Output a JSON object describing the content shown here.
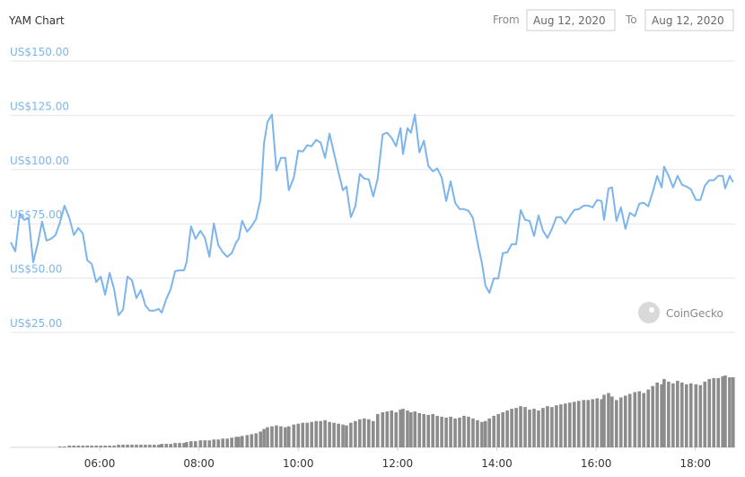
{
  "header": {
    "title": "YAM Chart",
    "from_label": "From",
    "from_date": "Aug 12, 2020",
    "to_label": "To",
    "to_date": "Aug 12, 2020"
  },
  "watermark": "CoinGecko",
  "chart_data": {
    "type": "line",
    "x": [
      4.21,
      4.3,
      4.39,
      4.48,
      4.57,
      4.66,
      4.75,
      4.84,
      4.93,
      5.02,
      5.11,
      5.2,
      5.29,
      5.39,
      5.48,
      5.57,
      5.66,
      5.75,
      5.84,
      5.93,
      6.02,
      6.11,
      6.2,
      6.29,
      6.38,
      6.47,
      6.56,
      6.65,
      6.74,
      6.83,
      6.92,
      7.01,
      7.1,
      7.19,
      7.25,
      7.34,
      7.43,
      7.52,
      7.61,
      7.7,
      7.75,
      7.84,
      7.93,
      8.03,
      8.12,
      8.21,
      8.3,
      8.39,
      8.48,
      8.57,
      8.66,
      8.75,
      8.8,
      8.87,
      8.97,
      9.06,
      9.15,
      9.24,
      9.31,
      9.38,
      9.47,
      9.56,
      9.65,
      9.74,
      9.81,
      9.91,
      10.0,
      10.09,
      10.18,
      10.27,
      10.36,
      10.45,
      10.54,
      10.63,
      10.72,
      10.81,
      10.9,
      10.97,
      11.06,
      11.15,
      11.24,
      11.33,
      11.42,
      11.51,
      11.6,
      11.7,
      11.79,
      11.88,
      11.97,
      12.06,
      12.11,
      12.2,
      12.27,
      12.35,
      12.44,
      12.53,
      12.62,
      12.71,
      12.8,
      12.89,
      12.98,
      13.07,
      13.16,
      13.25,
      13.34,
      13.43,
      13.52,
      13.61,
      13.7,
      13.77,
      13.85,
      13.94,
      14.03,
      14.12,
      14.21,
      14.3,
      14.39,
      14.48,
      14.57,
      14.66,
      14.75,
      14.84,
      14.93,
      15.02,
      15.11,
      15.2,
      15.29,
      15.38,
      15.47,
      15.56,
      15.65,
      15.75,
      15.84,
      15.93,
      16.02,
      16.11,
      16.16,
      16.25,
      16.32,
      16.41,
      16.5,
      16.59,
      16.68,
      16.78,
      16.87,
      16.96,
      17.05,
      17.14,
      17.23,
      17.32,
      17.37,
      17.46,
      17.55,
      17.64,
      17.73,
      17.82,
      17.91,
      18.01,
      18.1,
      18.19,
      18.28,
      18.37,
      18.46,
      18.55,
      18.6,
      18.69,
      18.76
    ],
    "series": [
      {
        "color": "#7cb5ec",
        "values": [
          66.5,
          62.3,
          79.7,
          76.8,
          77.6,
          57.3,
          65.6,
          76,
          67.3,
          68.1,
          69.8,
          75.6,
          83.4,
          77.6,
          69.8,
          73.1,
          70.6,
          58.2,
          56.5,
          48.2,
          50.7,
          42.4,
          52.4,
          44.9,
          32.9,
          35.4,
          50.7,
          49,
          40.8,
          44.5,
          37.4,
          35,
          35,
          35.8,
          34.1,
          40.3,
          44.9,
          53.2,
          53.6,
          53.6,
          57.3,
          73.9,
          68.1,
          71.8,
          68.5,
          59.8,
          75.2,
          65.2,
          61.9,
          59.8,
          61.5,
          66.5,
          68.1,
          76.4,
          71.4,
          73.9,
          77.2,
          86.4,
          112.1,
          122,
          125.3,
          99.6,
          105.4,
          105.4,
          90.5,
          96.3,
          108.7,
          108.3,
          111.2,
          110.8,
          113.7,
          112.5,
          105.4,
          116.6,
          107.5,
          98.8,
          90.5,
          92.2,
          78.1,
          83.1,
          98,
          95.9,
          95.5,
          87.6,
          95.9,
          116.2,
          117,
          114.6,
          110.8,
          119.1,
          107.1,
          119.1,
          117,
          125.3,
          107.9,
          113.3,
          101.7,
          99.2,
          100.5,
          96.3,
          85.5,
          94.6,
          84.7,
          81.8,
          81.8,
          81,
          77.6,
          66.5,
          56.9,
          46.6,
          43.2,
          49.9,
          49.9,
          61.5,
          61.9,
          65.6,
          65.6,
          81.4,
          76.8,
          76.4,
          69.4,
          78.9,
          71.8,
          68.5,
          72.7,
          78.1,
          78.1,
          75.2,
          78.5,
          81.4,
          81.8,
          83.4,
          83.4,
          82.6,
          86,
          85.5,
          76.8,
          91.3,
          91.8,
          76.4,
          82.6,
          72.7,
          80.1,
          78.5,
          84.3,
          84.7,
          83.1,
          89.7,
          97.1,
          91.8,
          101.3,
          97.1,
          91.8,
          97.1,
          93,
          92.2,
          90.9,
          86,
          86,
          92.6,
          95.1,
          95.1,
          97.1,
          97.1,
          91.3,
          97.1,
          94.2
        ]
      }
    ],
    "volume": {
      "color": "#8c8c8c",
      "values": [
        null,
        null,
        null,
        null,
        null,
        null,
        null,
        null,
        null,
        null,
        null,
        1,
        1,
        2,
        2,
        2,
        2,
        2,
        2,
        2,
        2,
        2,
        2,
        2,
        3,
        3,
        3,
        3,
        3,
        3,
        3,
        3,
        3,
        3,
        4,
        4,
        4,
        5,
        5,
        5,
        6,
        7,
        7,
        8,
        8,
        8,
        9,
        9,
        10,
        10,
        11,
        12,
        12,
        13,
        14,
        15,
        16,
        18,
        21,
        23,
        24,
        25,
        24,
        23,
        24,
        26,
        27,
        28,
        28,
        29,
        30,
        30,
        31,
        29,
        28,
        27,
        26,
        25,
        28,
        30,
        32,
        33,
        32,
        30,
        38,
        40,
        41,
        42,
        40,
        43,
        44,
        42,
        40,
        41,
        39,
        38,
        37,
        38,
        36,
        35,
        34,
        35,
        33,
        34,
        36,
        35,
        33,
        31,
        29,
        30,
        33,
        36,
        38,
        40,
        42,
        44,
        45,
        47,
        46,
        43,
        44,
        42,
        45,
        47,
        46,
        48,
        49,
        50,
        51,
        52,
        53,
        54,
        54,
        55,
        56,
        55,
        60,
        62,
        58,
        54,
        57,
        59,
        61,
        63,
        64,
        62,
        66,
        70,
        74,
        72,
        78,
        75,
        73,
        76,
        74,
        72,
        73,
        72,
        71,
        75,
        78,
        79,
        79,
        81,
        82,
        80,
        80
      ]
    },
    "xlim": [
      4.2,
      18.8
    ],
    "xticks": [
      {
        "value": 6,
        "label": "06:00"
      },
      {
        "value": 8,
        "label": "08:00"
      },
      {
        "value": 10,
        "label": "10:00"
      },
      {
        "value": 12,
        "label": "12:00"
      },
      {
        "value": 14,
        "label": "14:00"
      },
      {
        "value": 16,
        "label": "16:00"
      },
      {
        "value": 18,
        "label": "18:00"
      }
    ],
    "ylim": [
      25,
      150
    ],
    "yticks": [
      {
        "value": 25,
        "label": "US$25.00"
      },
      {
        "value": 50,
        "label": "US$50.00"
      },
      {
        "value": 75,
        "label": "US$75.00"
      },
      {
        "value": 100,
        "label": "US$100.00"
      },
      {
        "value": 125,
        "label": "US$125.00"
      },
      {
        "value": 150,
        "label": "US$150.00"
      }
    ],
    "grid": true
  }
}
